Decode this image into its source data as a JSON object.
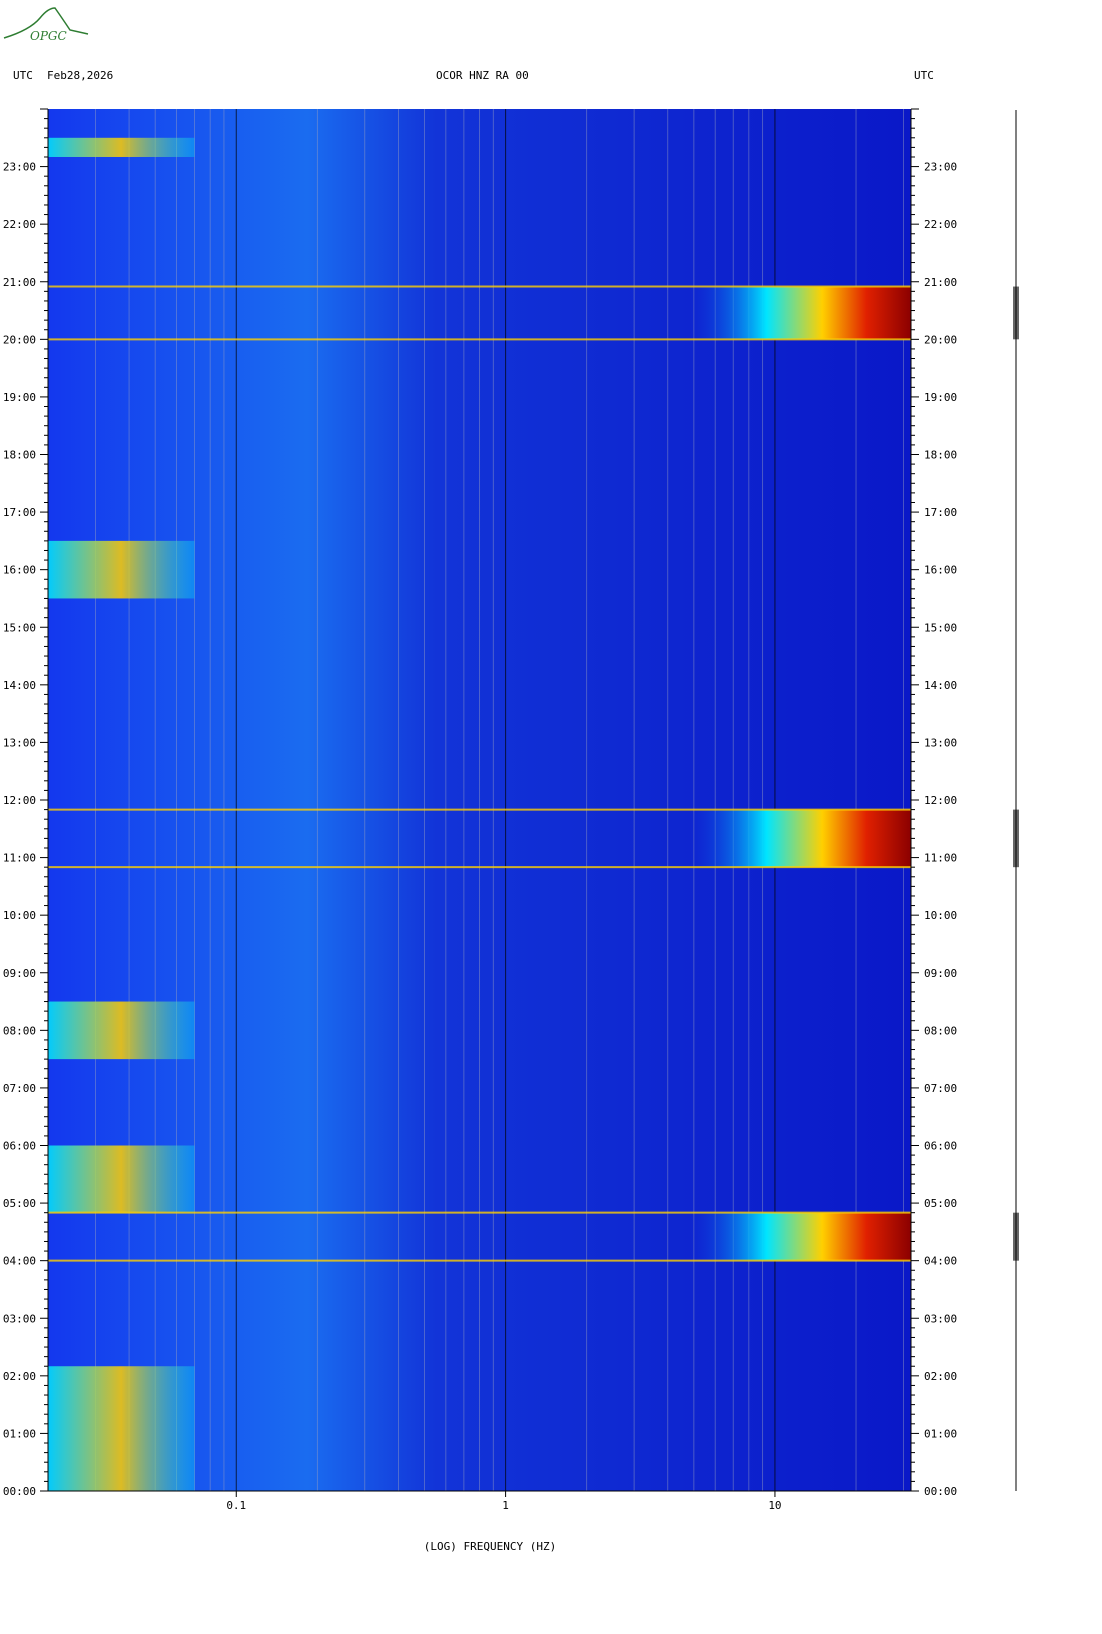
{
  "header": {
    "left_tz": "UTC",
    "date": "Feb28,2026",
    "station": "OCOR HNZ RA 00",
    "right_tz": "UTC"
  },
  "logo": {
    "text": "OPGC",
    "color": "#2e7d32"
  },
  "colors": {
    "background": "#0a18c8",
    "low": "#1030e8",
    "mid": "#00e5ff",
    "high": "#ffd000",
    "peak": "#8b0000"
  },
  "chart_data": {
    "type": "heatmap",
    "title": "OCOR HNZ RA 00",
    "xlabel": "(LOG) FREQUENCY (HZ)",
    "x_scale": "log",
    "xlim": [
      0.02,
      32
    ],
    "x_ticks": [
      0.1,
      1,
      10
    ],
    "x_tick_labels": [
      "0.1",
      "1",
      "10"
    ],
    "ylim_hours": [
      0,
      24
    ],
    "y_tick_labels": [
      "00:00",
      "01:00",
      "02:00",
      "03:00",
      "04:00",
      "05:00",
      "06:00",
      "07:00",
      "08:00",
      "09:00",
      "10:00",
      "11:00",
      "12:00",
      "13:00",
      "14:00",
      "15:00",
      "16:00",
      "17:00",
      "18:00",
      "19:00",
      "20:00",
      "21:00",
      "22:00",
      "23:00"
    ],
    "high_energy_bursts": [
      {
        "start": "04:00",
        "end": "04:50",
        "freq_hz": [
          8,
          32
        ]
      },
      {
        "start": "10:50",
        "end": "11:50",
        "freq_hz": [
          8,
          32
        ]
      },
      {
        "start": "20:00",
        "end": "20:55",
        "freq_hz": [
          8,
          32
        ]
      }
    ],
    "lowfreq_bands": [
      {
        "start": "00:00",
        "end": "02:10"
      },
      {
        "start": "04:50",
        "end": "06:00"
      },
      {
        "start": "07:30",
        "end": "08:30"
      },
      {
        "start": "15:30",
        "end": "16:30"
      },
      {
        "start": "23:10",
        "end": "23:30"
      }
    ]
  }
}
